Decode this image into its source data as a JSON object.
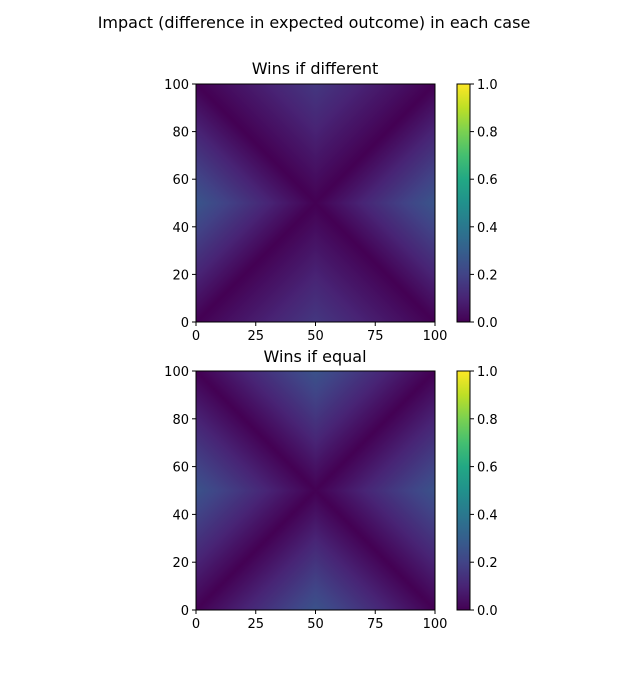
{
  "figure": {
    "suptitle": "Impact (difference in expected outcome) in each case"
  },
  "chart_data": [
    {
      "type": "heatmap",
      "title": "Wins if different",
      "xlabel": "",
      "ylabel": "",
      "xlim": [
        0,
        100
      ],
      "ylim": [
        0,
        100
      ],
      "xticks": [
        0,
        25,
        50,
        75,
        100
      ],
      "yticks": [
        0,
        20,
        40,
        60,
        80,
        100
      ],
      "grid": false,
      "colormap": "viridis",
      "value_range": [
        0,
        1
      ],
      "colorbar_ticks": [
        "0.0",
        "0.2",
        "0.4",
        "0.6",
        "0.8",
        "1.0"
      ],
      "pattern": "value ≈ 0 along both diagonals, max ≈ 0.25 at left/right edge midpoints, ≈ 0.15 at top/bottom edge midpoints"
    },
    {
      "type": "heatmap",
      "title": "Wins if equal",
      "xlabel": "",
      "ylabel": "",
      "xlim": [
        0,
        100
      ],
      "ylim": [
        0,
        100
      ],
      "xticks": [
        0,
        25,
        50,
        75,
        100
      ],
      "yticks": [
        0,
        20,
        40,
        60,
        80,
        100
      ],
      "grid": false,
      "colormap": "viridis",
      "value_range": [
        0,
        1
      ],
      "colorbar_ticks": [
        "0.0",
        "0.2",
        "0.4",
        "0.6",
        "0.8",
        "1.0"
      ],
      "pattern": "value ≈ 0 along both diagonals, max ≈ 0.25 at all four edge midpoints"
    }
  ]
}
